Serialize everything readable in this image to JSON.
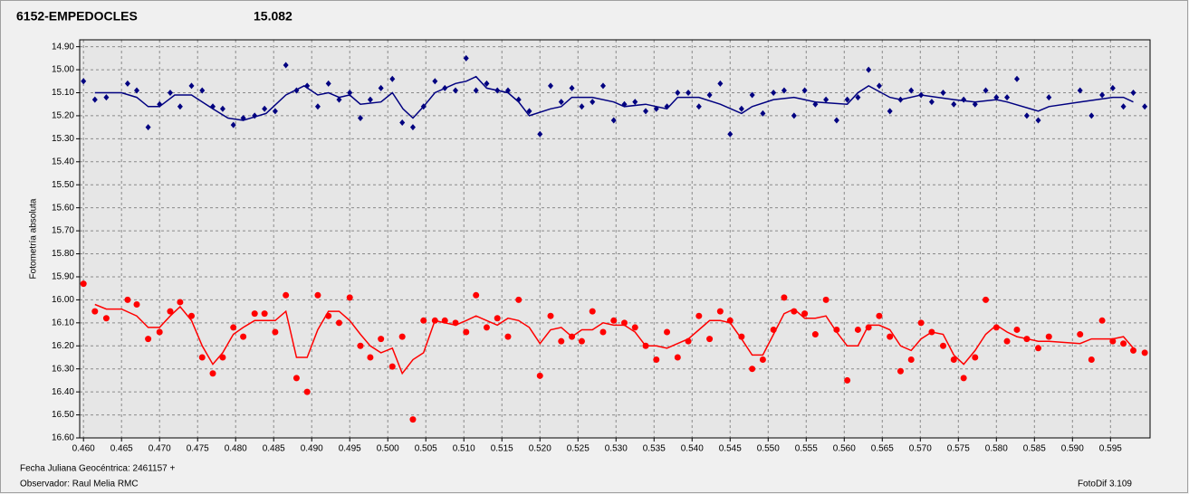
{
  "chart_data": {
    "type": "line",
    "title": "6152-EMPEDOCLES",
    "title_color": "#ff0000",
    "subtitle": "15.082",
    "subtitle_color": "#000080",
    "y_label": "Fotometría absoluta",
    "footer": {
      "date_label": "Fecha Juliana Geocéntrica: 2461157 +",
      "observer": "Observador: Raul Melia RMC",
      "software": "FotoDif 3.109"
    },
    "grid": true,
    "xlim": [
      0.4595,
      0.6002
    ],
    "ylim": [
      16.6,
      14.87
    ],
    "xticks": [
      {
        "value": 0.46,
        "label": "0.460"
      },
      {
        "value": 0.465,
        "label": "0.465"
      },
      {
        "value": 0.47,
        "label": "0.470"
      },
      {
        "value": 0.475,
        "label": "0.475"
      },
      {
        "value": 0.48,
        "label": "0.480"
      },
      {
        "value": 0.485,
        "label": "0.485"
      },
      {
        "value": 0.49,
        "label": "0.490"
      },
      {
        "value": 0.495,
        "label": "0.495"
      },
      {
        "value": 0.5,
        "label": "0.500"
      },
      {
        "value": 0.505,
        "label": "0.505"
      },
      {
        "value": 0.51,
        "label": "0.510"
      },
      {
        "value": 0.515,
        "label": "0.515"
      },
      {
        "value": 0.52,
        "label": "0.520"
      },
      {
        "value": 0.525,
        "label": "0.525"
      },
      {
        "value": 0.53,
        "label": "0.530"
      },
      {
        "value": 0.535,
        "label": "0.535"
      },
      {
        "value": 0.54,
        "label": "0.540"
      },
      {
        "value": 0.545,
        "label": "0.545"
      },
      {
        "value": 0.55,
        "label": "0.550"
      },
      {
        "value": 0.555,
        "label": "0.555"
      },
      {
        "value": 0.56,
        "label": "0.560"
      },
      {
        "value": 0.565,
        "label": "0.565"
      },
      {
        "value": 0.57,
        "label": "0.570"
      },
      {
        "value": 0.575,
        "label": "0.575"
      },
      {
        "value": 0.58,
        "label": "0.580"
      },
      {
        "value": 0.585,
        "label": "0.585"
      },
      {
        "value": 0.59,
        "label": "0.590"
      },
      {
        "value": 0.595,
        "label": "0.595"
      }
    ],
    "yticks": [
      {
        "value": 14.9,
        "label": "14.90"
      },
      {
        "value": 15.0,
        "label": "15.00"
      },
      {
        "value": 15.1,
        "label": "15.10"
      },
      {
        "value": 15.2,
        "label": "15.20"
      },
      {
        "value": 15.3,
        "label": "15.30"
      },
      {
        "value": 15.4,
        "label": "15.40"
      },
      {
        "value": 15.5,
        "label": "15.50"
      },
      {
        "value": 15.6,
        "label": "15.60"
      },
      {
        "value": 15.7,
        "label": "15.70"
      },
      {
        "value": 15.8,
        "label": "15.80"
      },
      {
        "value": 15.9,
        "label": "15.90"
      },
      {
        "value": 16.0,
        "label": "16.00"
      },
      {
        "value": 16.1,
        "label": "16.10"
      },
      {
        "value": 16.2,
        "label": "16.20"
      },
      {
        "value": 16.3,
        "label": "16.30"
      },
      {
        "value": 16.4,
        "label": "16.40"
      },
      {
        "value": 16.5,
        "label": "16.50"
      },
      {
        "value": 16.6,
        "label": "16.60"
      }
    ],
    "series": [
      {
        "style": "markers",
        "marker": "diamond",
        "color": "#000080",
        "x": [
          0.46,
          0.4615,
          0.463,
          0.4658,
          0.467,
          0.4685,
          0.47,
          0.4714,
          0.4727,
          0.4742,
          0.4756,
          0.477,
          0.4783,
          0.4797,
          0.481,
          0.4825,
          0.4838,
          0.4852,
          0.4866,
          0.488,
          0.4894,
          0.4908,
          0.4922,
          0.4936,
          0.495,
          0.4964,
          0.4977,
          0.4991,
          0.5006,
          0.5019,
          0.5033,
          0.5047,
          0.5062,
          0.5075,
          0.5089,
          0.5103,
          0.5116,
          0.513,
          0.5144,
          0.5158,
          0.5172,
          0.5186,
          0.52,
          0.5214,
          0.5228,
          0.5242,
          0.5255,
          0.5269,
          0.5283,
          0.5297,
          0.5311,
          0.5325,
          0.5339,
          0.5353,
          0.5367,
          0.5381,
          0.5395,
          0.5409,
          0.5423,
          0.5437,
          0.545,
          0.5465,
          0.5479,
          0.5493,
          0.5507,
          0.5521,
          0.5534,
          0.5548,
          0.5562,
          0.5576,
          0.559,
          0.5604,
          0.5618,
          0.5632,
          0.5646,
          0.566,
          0.5674,
          0.5688,
          0.5701,
          0.5715,
          0.573,
          0.5744,
          0.5757,
          0.5772,
          0.5786,
          0.58,
          0.5814,
          0.5827,
          0.584,
          0.5855,
          0.5869,
          0.591,
          0.5925,
          0.5939,
          0.5953,
          0.5967,
          0.598,
          0.5995
        ],
        "values": [
          15.05,
          15.13,
          15.12,
          15.06,
          15.09,
          15.25,
          15.15,
          15.1,
          15.16,
          15.07,
          15.09,
          15.16,
          15.17,
          15.24,
          15.21,
          15.2,
          15.17,
          15.18,
          14.98,
          15.09,
          15.07,
          15.16,
          15.06,
          15.13,
          15.1,
          15.21,
          15.13,
          15.08,
          15.04,
          15.23,
          15.25,
          15.16,
          15.05,
          15.08,
          15.09,
          14.95,
          15.09,
          15.06,
          15.09,
          15.09,
          15.13,
          15.18,
          15.28,
          15.07,
          15.14,
          15.08,
          15.16,
          15.14,
          15.07,
          15.22,
          15.15,
          15.14,
          15.18,
          15.17,
          15.16,
          15.1,
          15.1,
          15.16,
          15.11,
          15.06,
          15.28,
          15.17,
          15.11,
          15.19,
          15.1,
          15.09,
          15.2,
          15.09,
          15.15,
          15.13,
          15.22,
          15.13,
          15.12,
          15.0,
          15.07,
          15.18,
          15.13,
          15.09,
          15.11,
          15.14,
          15.1,
          15.15,
          15.13,
          15.15,
          15.09,
          15.12,
          15.12,
          15.04,
          15.2,
          15.22,
          15.12,
          15.09,
          15.2,
          15.11,
          15.08,
          15.16,
          15.1,
          15.16
        ]
      },
      {
        "style": "line",
        "color": "#000080",
        "x": [
          0.4615,
          0.465,
          0.467,
          0.4685,
          0.47,
          0.472,
          0.4742,
          0.477,
          0.479,
          0.481,
          0.484,
          0.4866,
          0.489,
          0.4908,
          0.4922,
          0.4936,
          0.495,
          0.4964,
          0.4991,
          0.5006,
          0.502,
          0.5033,
          0.5047,
          0.5062,
          0.5089,
          0.5103,
          0.5116,
          0.513,
          0.5158,
          0.5172,
          0.5186,
          0.5214,
          0.5228,
          0.5242,
          0.5269,
          0.5297,
          0.5311,
          0.5339,
          0.5367,
          0.5381,
          0.5409,
          0.5437,
          0.5465,
          0.5479,
          0.5507,
          0.5534,
          0.5562,
          0.5604,
          0.5618,
          0.5632,
          0.566,
          0.5674,
          0.5701,
          0.5744,
          0.5772,
          0.58,
          0.5814,
          0.5855,
          0.5869,
          0.591,
          0.5953,
          0.5967,
          0.598
        ],
        "values": [
          15.1,
          15.1,
          15.12,
          15.16,
          15.16,
          15.11,
          15.11,
          15.17,
          15.21,
          15.22,
          15.19,
          15.11,
          15.07,
          15.11,
          15.1,
          15.12,
          15.11,
          15.15,
          15.14,
          15.1,
          15.17,
          15.21,
          15.16,
          15.1,
          15.06,
          15.05,
          15.03,
          15.08,
          15.1,
          15.14,
          15.2,
          15.17,
          15.16,
          15.12,
          15.12,
          15.14,
          15.16,
          15.15,
          15.17,
          15.12,
          15.12,
          15.15,
          15.19,
          15.16,
          15.13,
          15.12,
          15.14,
          15.15,
          15.1,
          15.07,
          15.12,
          15.13,
          15.11,
          15.13,
          15.14,
          15.13,
          15.14,
          15.18,
          15.16,
          15.14,
          15.12,
          15.12,
          15.14
        ]
      },
      {
        "style": "markers",
        "marker": "circle",
        "color": "#ff0000",
        "x": [
          0.46,
          0.4615,
          0.463,
          0.4658,
          0.467,
          0.4685,
          0.47,
          0.4714,
          0.4727,
          0.4742,
          0.4756,
          0.477,
          0.4783,
          0.4797,
          0.481,
          0.4825,
          0.4838,
          0.4852,
          0.4866,
          0.488,
          0.4894,
          0.4908,
          0.4922,
          0.4936,
          0.495,
          0.4964,
          0.4977,
          0.4991,
          0.5006,
          0.5019,
          0.5033,
          0.5047,
          0.5062,
          0.5075,
          0.5089,
          0.5103,
          0.5116,
          0.513,
          0.5144,
          0.5158,
          0.5172,
          0.52,
          0.5214,
          0.5228,
          0.5242,
          0.5255,
          0.5269,
          0.5283,
          0.5297,
          0.5311,
          0.5325,
          0.5339,
          0.5353,
          0.5367,
          0.5381,
          0.5395,
          0.5409,
          0.5423,
          0.5437,
          0.545,
          0.5465,
          0.5479,
          0.5493,
          0.5507,
          0.5521,
          0.5534,
          0.5548,
          0.5562,
          0.5576,
          0.559,
          0.5604,
          0.5618,
          0.5632,
          0.5646,
          0.566,
          0.5674,
          0.5688,
          0.5701,
          0.5715,
          0.573,
          0.5744,
          0.5757,
          0.5772,
          0.5786,
          0.58,
          0.5814,
          0.5827,
          0.584,
          0.5855,
          0.5869,
          0.591,
          0.5925,
          0.5939,
          0.5953,
          0.5967,
          0.598,
          0.5995
        ],
        "values": [
          15.93,
          16.05,
          16.08,
          16.0,
          16.02,
          16.17,
          16.14,
          16.05,
          16.01,
          16.07,
          16.25,
          16.32,
          16.25,
          16.12,
          16.16,
          16.06,
          16.06,
          16.14,
          15.98,
          16.34,
          16.4,
          15.98,
          16.07,
          16.1,
          15.99,
          16.2,
          16.25,
          16.17,
          16.29,
          16.16,
          16.52,
          16.09,
          16.09,
          16.09,
          16.1,
          16.14,
          15.98,
          16.12,
          16.08,
          16.16,
          16.0,
          16.33,
          16.07,
          16.18,
          16.16,
          16.18,
          16.05,
          16.14,
          16.09,
          16.1,
          16.12,
          16.2,
          16.26,
          16.14,
          16.25,
          16.18,
          16.07,
          16.17,
          16.05,
          16.09,
          16.16,
          16.3,
          16.26,
          16.13,
          15.99,
          16.05,
          16.06,
          16.15,
          16.0,
          16.13,
          16.35,
          16.13,
          16.12,
          16.07,
          16.16,
          16.31,
          16.26,
          16.1,
          16.14,
          16.2,
          16.26,
          16.34,
          16.25,
          16.0,
          16.12,
          16.18,
          16.13,
          16.17,
          16.21,
          16.16,
          16.15,
          16.26,
          16.09,
          16.18,
          16.19,
          16.22,
          16.23
        ]
      },
      {
        "style": "line",
        "color": "#ff0000",
        "x": [
          0.4615,
          0.463,
          0.465,
          0.467,
          0.4685,
          0.47,
          0.4714,
          0.4727,
          0.4742,
          0.4756,
          0.477,
          0.4783,
          0.4797,
          0.481,
          0.4825,
          0.4852,
          0.4866,
          0.488,
          0.4894,
          0.4908,
          0.4922,
          0.4936,
          0.495,
          0.4964,
          0.4977,
          0.4991,
          0.5006,
          0.5019,
          0.5033,
          0.5047,
          0.5062,
          0.5075,
          0.5089,
          0.5103,
          0.5116,
          0.513,
          0.5144,
          0.5158,
          0.5172,
          0.5186,
          0.52,
          0.5214,
          0.5228,
          0.5242,
          0.5255,
          0.5269,
          0.5283,
          0.5297,
          0.5311,
          0.5325,
          0.5339,
          0.5353,
          0.5367,
          0.5381,
          0.5395,
          0.5409,
          0.5423,
          0.5437,
          0.545,
          0.5465,
          0.5479,
          0.5493,
          0.5507,
          0.5521,
          0.5534,
          0.5548,
          0.5562,
          0.5576,
          0.559,
          0.5604,
          0.5618,
          0.5632,
          0.5646,
          0.566,
          0.5674,
          0.5688,
          0.5701,
          0.5715,
          0.573,
          0.5744,
          0.5757,
          0.5772,
          0.5786,
          0.58,
          0.5814,
          0.5827,
          0.5855,
          0.5869,
          0.591,
          0.5925,
          0.5953,
          0.5967,
          0.598
        ],
        "values": [
          16.02,
          16.04,
          16.04,
          16.07,
          16.12,
          16.12,
          16.07,
          16.03,
          16.09,
          16.2,
          16.28,
          16.23,
          16.15,
          16.12,
          16.09,
          16.09,
          16.05,
          16.25,
          16.25,
          16.13,
          16.05,
          16.05,
          16.09,
          16.15,
          16.2,
          16.23,
          16.21,
          16.32,
          16.26,
          16.23,
          16.09,
          16.1,
          16.11,
          16.09,
          16.07,
          16.09,
          16.11,
          16.08,
          16.09,
          16.12,
          16.19,
          16.13,
          16.12,
          16.16,
          16.13,
          16.13,
          16.1,
          16.11,
          16.11,
          16.14,
          16.2,
          16.2,
          16.21,
          16.19,
          16.17,
          16.13,
          16.09,
          16.09,
          16.1,
          16.17,
          16.24,
          16.24,
          16.15,
          16.06,
          16.04,
          16.08,
          16.08,
          16.07,
          16.14,
          16.2,
          16.2,
          16.11,
          16.11,
          16.13,
          16.2,
          16.22,
          16.17,
          16.14,
          16.15,
          16.24,
          16.28,
          16.22,
          16.15,
          16.11,
          16.14,
          16.16,
          16.18,
          16.18,
          16.19,
          16.17,
          16.17,
          16.16,
          16.21
        ]
      }
    ]
  }
}
